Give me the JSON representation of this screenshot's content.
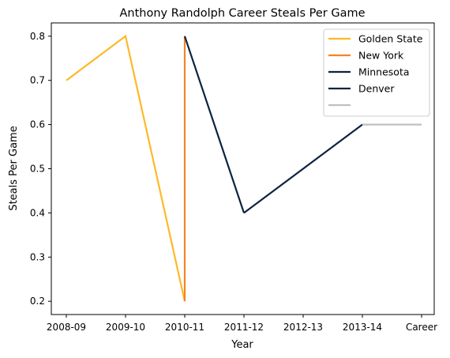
{
  "chart_data": {
    "type": "line",
    "title": "Anthony Randolph Career Steals Per Game",
    "xlabel": "Year",
    "ylabel": "Steals Per Game",
    "categories": [
      "2008-09",
      "2009-10",
      "2010-11",
      "2011-12",
      "2012-13",
      "2013-14",
      "Career"
    ],
    "ylim": [
      0.17,
      0.83
    ],
    "yticks": [
      0.2,
      0.3,
      0.4,
      0.5,
      0.6,
      0.7,
      0.8
    ],
    "ytick_labels": [
      "0.2",
      "0.3",
      "0.4",
      "0.5",
      "0.6",
      "0.7",
      "0.8"
    ],
    "grid": false,
    "legend_position": "top-right",
    "series": [
      {
        "name": "Golden State",
        "color": "#FDB927",
        "points": [
          {
            "x": "2008-09",
            "y": 0.7
          },
          {
            "x": "2009-10",
            "y": 0.8
          },
          {
            "x": "2010-11",
            "y": 0.2
          }
        ]
      },
      {
        "name": "New York",
        "color": "#F58426",
        "points": [
          {
            "x": "2010-11",
            "y": 0.2
          },
          {
            "x": "2010-11",
            "y": 0.8
          }
        ]
      },
      {
        "name": "Minnesota",
        "color": "#0C2340",
        "points": [
          {
            "x": "2010-11",
            "y": 0.8
          },
          {
            "x": "2011-12",
            "y": 0.4
          }
        ]
      },
      {
        "name": "Denver",
        "color": "#0E2240",
        "points": [
          {
            "x": "2011-12",
            "y": 0.4
          },
          {
            "x": "2013-14",
            "y": 0.6
          }
        ]
      },
      {
        "name": "",
        "color": "#BEC0C2",
        "points": [
          {
            "x": "2013-14",
            "y": 0.6
          },
          {
            "x": "Career",
            "y": 0.6
          }
        ]
      }
    ]
  }
}
